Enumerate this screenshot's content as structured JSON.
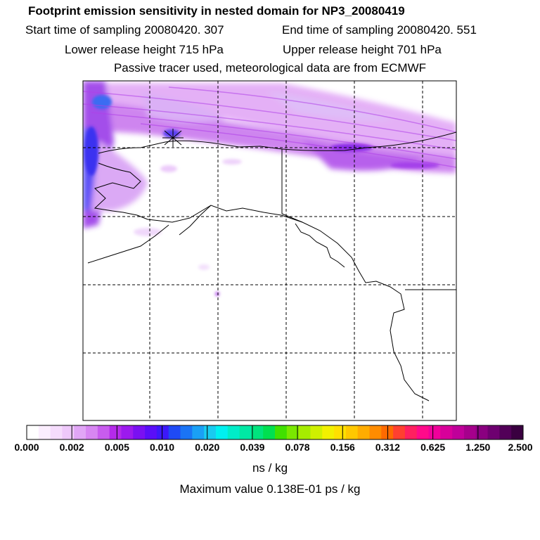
{
  "header": {
    "title": "Footprint emission sensitivity in nested domain for NP3_20080419",
    "start_time": "Start time of sampling 20080420.   307",
    "end_time": "End time of sampling 20080420.   551",
    "lower_height": "Lower release height  715 hPa",
    "upper_height": "Upper release height  701 hPa",
    "tracer_info": "Passive tracer used, meteorological data are from ECMWF"
  },
  "colorbar": {
    "labels": [
      "0.000",
      "0.002",
      "0.005",
      "0.010",
      "0.020",
      "0.039",
      "0.078",
      "0.156",
      "0.312",
      "0.625",
      "1.250",
      "2.500"
    ],
    "colors": [
      "#ffffff",
      "#fbeefe",
      "#f5dcfc",
      "#eec8fa",
      "#e1a6f6",
      "#d786f2",
      "#c85cee",
      "#b52aea",
      "#9c1aee",
      "#7a10f2",
      "#5a0ef8",
      "#3c18fa",
      "#1f4af5",
      "#1a74f5",
      "#1aa0f5",
      "#19cbf0",
      "#00f0f0",
      "#00ecc8",
      "#00e8a4",
      "#00e47e",
      "#00e050",
      "#40e000",
      "#7ae800",
      "#a6ec00",
      "#cff000",
      "#f2f000",
      "#ffe000",
      "#ffc800",
      "#ffac00",
      "#ff8c00",
      "#ff6a00",
      "#ff4030",
      "#ff2060",
      "#ff0a8a",
      "#f0009a",
      "#d8009a",
      "#c0009a",
      "#a6008c",
      "#8a0080",
      "#6e0070",
      "#520058",
      "#3a0040"
    ],
    "unit": "ns / kg"
  },
  "footer": {
    "max_value": "Maximum value  0.138E-01 ps / kg"
  },
  "map": {
    "receptor_marker": "release-point"
  }
}
